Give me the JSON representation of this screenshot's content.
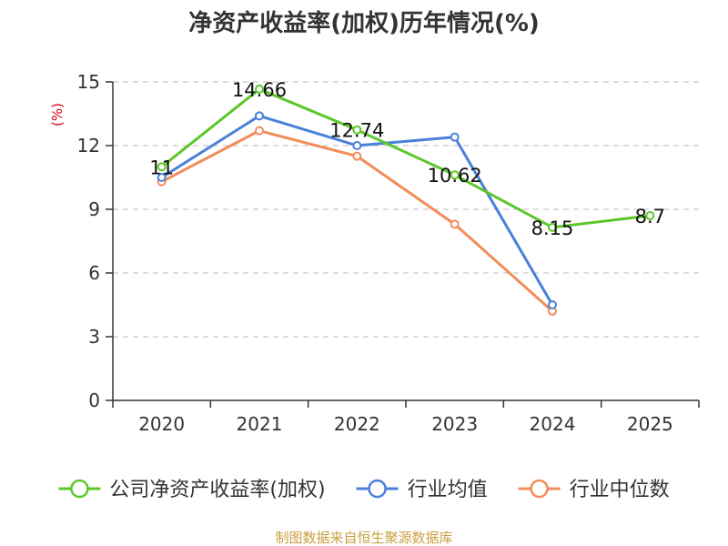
{
  "chart_data": {
    "type": "line",
    "title": "净资产收益率(加权)历年情况(%)",
    "ylabel": "(%)",
    "xlabel": "",
    "categories": [
      "2020",
      "2021",
      "2022",
      "2023",
      "2024",
      "2025"
    ],
    "ylim": [
      0,
      15
    ],
    "yticks": [
      0,
      3,
      6,
      9,
      12,
      15
    ],
    "grid": true,
    "legend_position": "bottom",
    "series": [
      {
        "name": "公司净资产收益率(加权)",
        "color": "#5cc72a",
        "values": [
          11,
          14.66,
          12.74,
          10.62,
          8.15,
          8.7
        ],
        "labels": [
          "11",
          "14.66",
          "12.74",
          "10.62",
          "8.15",
          "8.7"
        ]
      },
      {
        "name": "行业均值",
        "color": "#4a80d9",
        "values": [
          10.5,
          13.4,
          12.0,
          12.4,
          4.5,
          null
        ]
      },
      {
        "name": "行业中位数",
        "color": "#f28c5a",
        "values": [
          10.3,
          12.7,
          11.5,
          8.3,
          4.2,
          null
        ]
      }
    ]
  },
  "source": "制图数据来自恒生聚源数据库"
}
